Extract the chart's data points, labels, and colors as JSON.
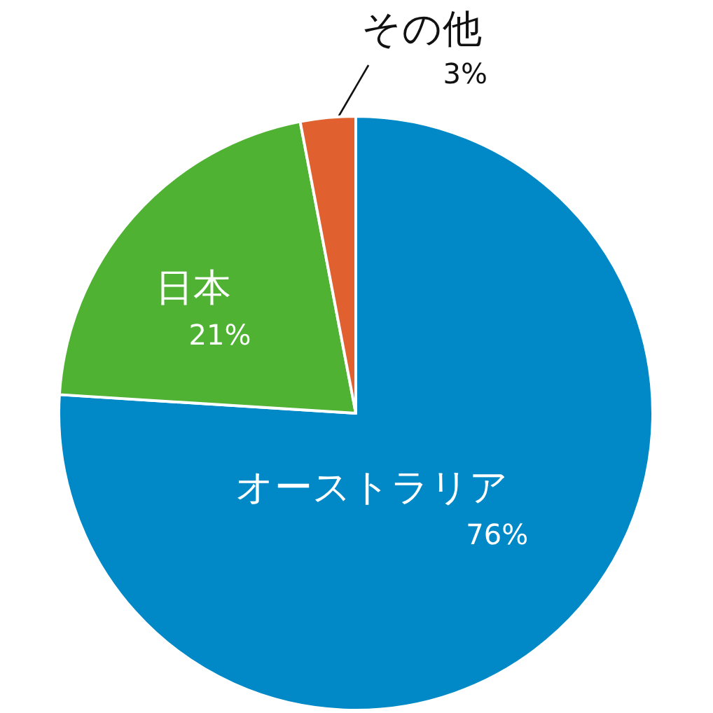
{
  "chart_data": {
    "type": "pie",
    "categories": [
      "オーストラリア",
      "日本",
      "その他"
    ],
    "values": [
      76,
      21,
      3
    ],
    "colors": [
      "#0089c6",
      "#4fb233",
      "#e0612f"
    ],
    "value_labels": [
      "76%",
      "21%",
      "3%"
    ]
  }
}
